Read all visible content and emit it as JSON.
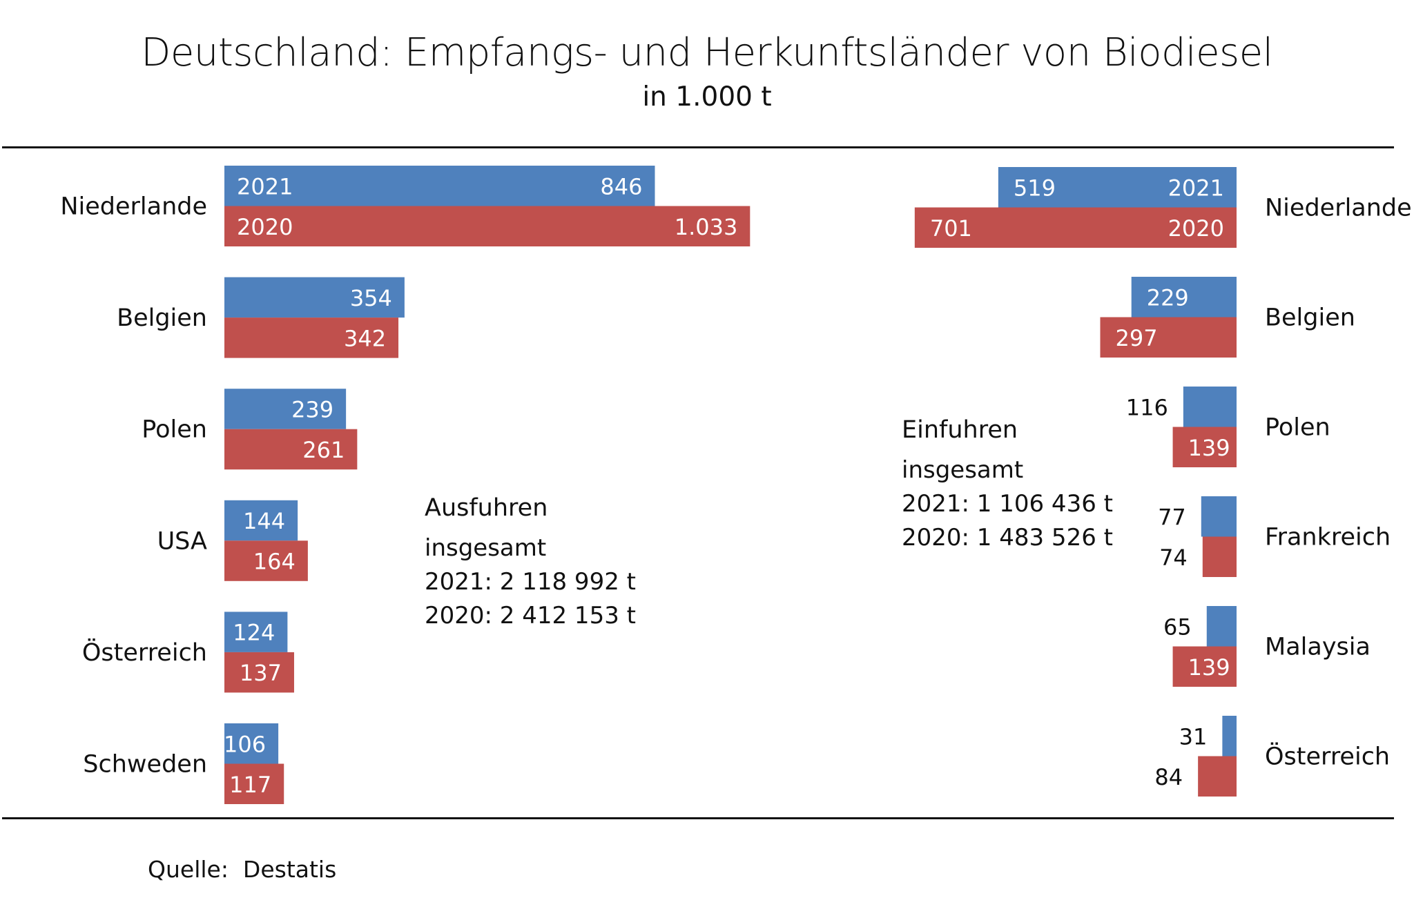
{
  "title": "Deutschland: Empfangs- und Herkunftsländer von Biodiesel",
  "subtitle": "in 1.000 t",
  "footer": "Quelle:  Destatis",
  "colors": {
    "y2021": "#4f81bd",
    "y2020": "#c0504d"
  },
  "ausfuhren": {
    "heading": "Ausfuhren",
    "total_label": "insgesamt",
    "line_2021": "2021: 2 118 992 t",
    "line_2020": "2020: 2 412 153 t"
  },
  "einfuhren": {
    "heading": "Einfuhren",
    "total_label": "insgesamt",
    "line_2021": "2021: 1 106 436 t",
    "line_2020": "2020: 1 483 526 t"
  },
  "chart_data": [
    {
      "type": "bar",
      "orientation": "horizontal",
      "title": "Ausfuhren (Empfangsländer)",
      "unit": "1.000 t",
      "categories": [
        "Niederlande",
        "Belgien",
        "Polen",
        "USA",
        "Österreich",
        "Schweden"
      ],
      "series": [
        {
          "name": "2021",
          "values": [
            846,
            354,
            239,
            144,
            124,
            106
          ],
          "labels": [
            "846",
            "354",
            "239",
            "144",
            "124",
            "106"
          ]
        },
        {
          "name": "2020",
          "values": [
            1033,
            342,
            261,
            164,
            137,
            117
          ],
          "labels": [
            "1.033",
            "342",
            "261",
            "164",
            "137",
            "117"
          ]
        }
      ],
      "direction": "left-to-right",
      "xlim": [
        0,
        1033
      ]
    },
    {
      "type": "bar",
      "orientation": "horizontal",
      "title": "Einfuhren (Herkunftsländer)",
      "unit": "1.000 t",
      "categories": [
        "Niederlande",
        "Belgien",
        "Polen",
        "Frankreich",
        "Malaysia",
        "Österreich"
      ],
      "series": [
        {
          "name": "2021",
          "values": [
            519,
            229,
            116,
            77,
            65,
            31
          ],
          "labels": [
            "519",
            "229",
            "116",
            "77",
            "65",
            "31"
          ]
        },
        {
          "name": "2020",
          "values": [
            701,
            297,
            139,
            74,
            139,
            84
          ],
          "labels": [
            "701",
            "297",
            "139",
            "74",
            "139",
            "84"
          ]
        }
      ],
      "direction": "right-to-left",
      "xlim": [
        0,
        701
      ]
    }
  ]
}
